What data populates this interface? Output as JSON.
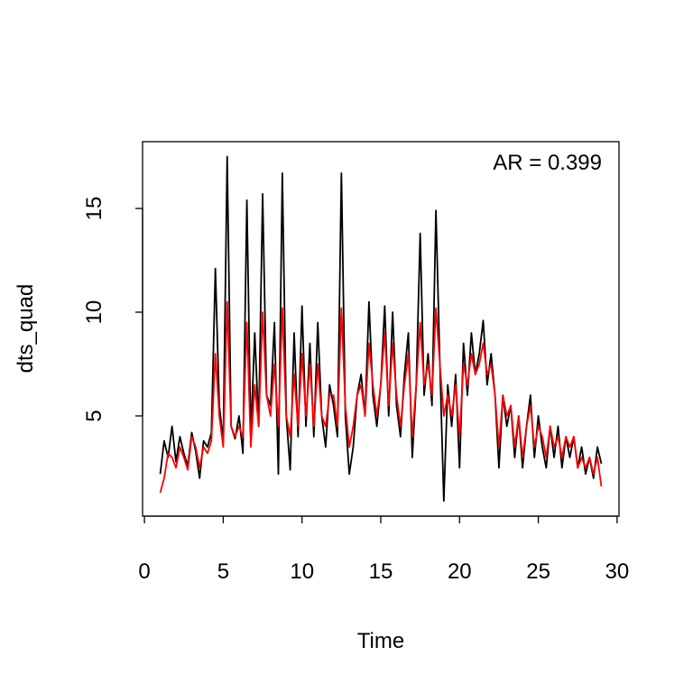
{
  "chart_data": {
    "type": "line",
    "xlabel": "Time",
    "ylabel": "dts_quad",
    "annotation": "AR = 0.399",
    "x": [
      1,
      1.25,
      1.5,
      1.75,
      2,
      2.25,
      2.5,
      2.75,
      3,
      3.25,
      3.5,
      3.75,
      4,
      4.25,
      4.5,
      4.75,
      5,
      5.25,
      5.5,
      5.75,
      6,
      6.25,
      6.5,
      6.75,
      7,
      7.25,
      7.5,
      7.75,
      8,
      8.25,
      8.5,
      8.75,
      9,
      9.25,
      9.5,
      9.75,
      10,
      10.25,
      10.5,
      10.75,
      11,
      11.25,
      11.5,
      11.75,
      12,
      12.25,
      12.5,
      12.75,
      13,
      13.25,
      13.5,
      13.75,
      14,
      14.25,
      14.5,
      14.75,
      15,
      15.25,
      15.5,
      15.75,
      16,
      16.25,
      16.5,
      16.75,
      17,
      17.25,
      17.5,
      17.75,
      18,
      18.25,
      18.5,
      18.75,
      19,
      19.25,
      19.5,
      19.75,
      20,
      20.25,
      20.5,
      20.75,
      21,
      21.25,
      21.5,
      21.75,
      22,
      22.25,
      22.5,
      22.75,
      23,
      23.25,
      23.5,
      23.75,
      24,
      24.25,
      24.5,
      24.75,
      25,
      25.25,
      25.5,
      25.75,
      26,
      26.25,
      26.5,
      26.75,
      27,
      27.25,
      27.5,
      27.75,
      28,
      28.25,
      28.5,
      28.75,
      29
    ],
    "series": [
      {
        "color": "#000000",
        "values": [
          2.2,
          3.8,
          3.0,
          4.5,
          2.8,
          4.0,
          3.2,
          2.6,
          4.2,
          3.3,
          2.0,
          3.8,
          3.5,
          4.2,
          12.1,
          5.5,
          3.8,
          17.5,
          4.5,
          3.9,
          5.0,
          3.2,
          15.4,
          4.0,
          9.0,
          4.5,
          15.7,
          6.0,
          5.5,
          9.5,
          2.2,
          16.7,
          5.0,
          2.4,
          9.0,
          4.0,
          10.3,
          4.5,
          8.5,
          4.0,
          9.5,
          5.0,
          3.5,
          6.5,
          5.5,
          4.0,
          16.7,
          5.0,
          2.2,
          3.5,
          6.0,
          7.0,
          5.0,
          10.5,
          6.0,
          4.5,
          6.5,
          10.3,
          5.0,
          10.0,
          5.5,
          4.0,
          7.0,
          9.0,
          3.0,
          6.5,
          13.8,
          6.0,
          8.0,
          5.5,
          14.9,
          7.5,
          0.9,
          6.5,
          4.5,
          7.0,
          2.5,
          8.5,
          6.0,
          9.0,
          7.0,
          8.0,
          9.6,
          6.5,
          8.0,
          6.0,
          2.5,
          6.0,
          4.5,
          5.5,
          3.0,
          5.0,
          2.5,
          4.5,
          6.0,
          3.0,
          5.0,
          3.5,
          2.5,
          4.5,
          3.0,
          4.5,
          2.5,
          4.0,
          3.0,
          4.0,
          2.5,
          3.5,
          2.2,
          3.0,
          2.0,
          3.5,
          2.7
        ]
      },
      {
        "color": "#ff0000",
        "values": [
          1.3,
          2.0,
          3.2,
          3.0,
          2.5,
          3.5,
          3.0,
          2.4,
          4.0,
          3.5,
          2.5,
          3.5,
          3.2,
          3.8,
          8.0,
          5.0,
          3.5,
          10.5,
          4.5,
          4.0,
          4.5,
          4.0,
          9.5,
          3.5,
          6.5,
          4.5,
          10.0,
          6.0,
          5.0,
          7.5,
          4.5,
          10.2,
          5.0,
          4.0,
          7.0,
          4.5,
          8.0,
          5.0,
          7.5,
          4.5,
          7.5,
          5.0,
          4.5,
          6.0,
          6.0,
          4.5,
          10.2,
          5.5,
          3.5,
          4.5,
          6.0,
          6.5,
          5.0,
          8.5,
          6.5,
          5.0,
          6.5,
          9.0,
          5.5,
          8.5,
          6.0,
          4.5,
          6.5,
          8.0,
          4.0,
          6.5,
          9.5,
          6.5,
          7.5,
          6.0,
          10.2,
          7.5,
          5.0,
          6.0,
          5.0,
          6.5,
          4.0,
          7.5,
          6.5,
          8.0,
          7.0,
          7.5,
          8.5,
          7.0,
          7.5,
          6.0,
          3.5,
          6.0,
          5.0,
          5.5,
          3.5,
          5.0,
          3.0,
          4.5,
          5.5,
          3.5,
          4.5,
          4.0,
          3.0,
          4.5,
          3.5,
          4.0,
          3.0,
          4.0,
          3.5,
          4.0,
          2.5,
          3.0,
          2.5,
          3.0,
          2.2,
          3.0,
          1.6
        ]
      }
    ],
    "xlim": [
      -0.12,
      30.12
    ],
    "ylim": [
      0.17,
      18.22
    ],
    "xticks": [
      0,
      5,
      10,
      15,
      20,
      25,
      30
    ],
    "yticks": [
      5,
      10,
      15
    ]
  }
}
